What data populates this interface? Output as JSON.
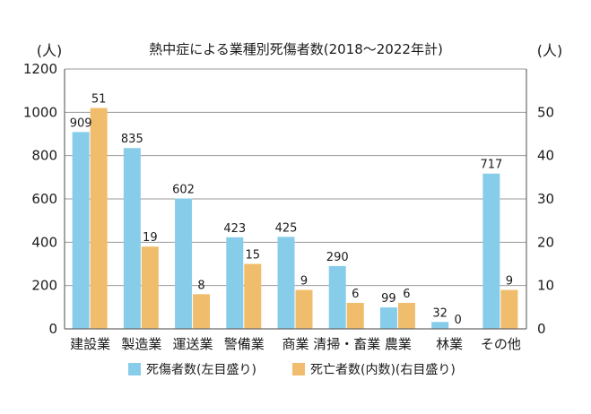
{
  "chart_data": {
    "type": "bar",
    "title": "熱中症による業種別死傷者数(2018〜2022年計)",
    "y_left_unit": "(人)",
    "y_right_unit": "(人)",
    "categories": [
      "建設業",
      "製造業",
      "運送業",
      "警備業",
      "商業",
      "清掃・畜業",
      "農業",
      "林業",
      "その他"
    ],
    "series": [
      {
        "name": "死傷者数(左目盛り)",
        "axis": "left",
        "color": "#87cdea",
        "values": [
          909,
          835,
          602,
          423,
          425,
          290,
          99,
          32,
          717
        ]
      },
      {
        "name": "死亡者数(内数)(右目盛り)",
        "axis": "right",
        "color": "#f0bd6c",
        "values": [
          51,
          19,
          8,
          15,
          9,
          6,
          6,
          0,
          9
        ]
      }
    ],
    "y_left": {
      "min": 0,
      "max": 1200,
      "ticks": [
        "0",
        "200",
        "400",
        "600",
        "800",
        "1000",
        "1200"
      ]
    },
    "y_right": {
      "min": 0,
      "max": 60,
      "ticks": [
        "0",
        "10",
        "20",
        "30",
        "40",
        "50"
      ]
    },
    "grid": true,
    "legend_position": "bottom"
  }
}
